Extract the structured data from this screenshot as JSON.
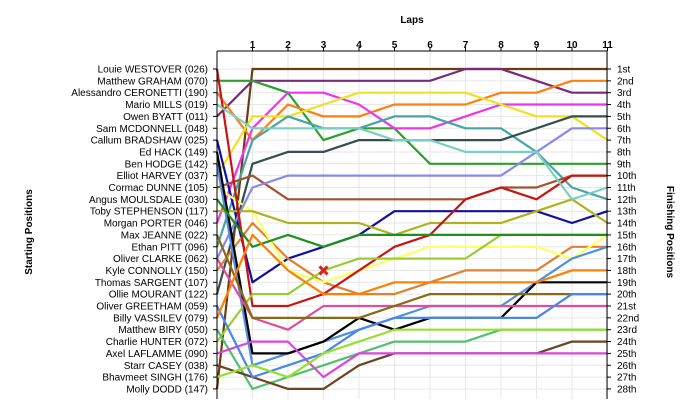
{
  "chart_data": {
    "type": "line",
    "title": "",
    "xlabel": "Laps",
    "ylabel_left": "Starting Positions",
    "ylabel_right": "Finishing Positions",
    "x_ticks": [
      "1",
      "2",
      "3",
      "4",
      "5",
      "6",
      "7",
      "8",
      "9",
      "10",
      "11"
    ],
    "drivers": [
      "Louie WESTOVER (026)",
      "Matthew GRAHAM (070)",
      "Alessandro CERONETTI (190)",
      "Mario MILLS (019)",
      "Owen BYATT (011)",
      "Sam MCDONNELL (048)",
      "Callum BRADSHAW (025)",
      "Ed HACK (149)",
      "Ben HODGE (142)",
      "Elliot HARVEY (037)",
      "Cormac DUNNE (105)",
      "Angus  MOULSDALE (030)",
      "Toby STEPHENSON (117)",
      "Morgan PORTER (046)",
      "Max JEANNE (022)",
      "Ethan PITT (096)",
      "Oliver CLARKE (062)",
      "Kyle CONNOLLY (150)",
      "Thomas SARGENT (107)",
      "Ollie MOURANT (122)",
      "Oliver GREETHAM (059)",
      "Billy VASSILEV (079)",
      "Matthew BIRY (050)",
      "Charlie HUNTER (072)",
      "Axel LAFLAMME (090)",
      "Starr CASEY (038)",
      "Bhavmeet SINGH (176)",
      "Molly DODD (147)"
    ],
    "finish_labels": [
      "1st",
      "2nd",
      "3rd",
      "4th",
      "5th",
      "6th",
      "7th",
      "8th",
      "9th",
      "10th",
      "11th",
      "12th",
      "13th",
      "14th",
      "15th",
      "16th",
      "17th",
      "18th",
      "19th",
      "20th",
      "21st",
      "22nd",
      "23rd",
      "24th",
      "25th",
      "26th",
      "27th",
      "28th"
    ],
    "marker": {
      "lap": 3,
      "position": 18,
      "color": "#e02020"
    },
    "series": [
      {
        "color": "#6a3d0e",
        "positions": [
          28,
          1,
          1,
          1,
          1,
          1,
          1,
          1,
          1,
          1,
          1,
          1
        ]
      },
      {
        "color": "#7a2a7a",
        "positions": [
          5,
          2,
          2,
          2,
          2,
          2,
          2,
          1,
          1,
          2,
          3,
          3
        ]
      },
      {
        "color": "#2ca02c",
        "positions": [
          2,
          2,
          3,
          7,
          6,
          6,
          9,
          9,
          9,
          9,
          9,
          9
        ]
      },
      {
        "color": "#ff7f0e",
        "positions": [
          3,
          7,
          4,
          5,
          5,
          4,
          4,
          4,
          3,
          3,
          2,
          2
        ]
      },
      {
        "color": "#ee33ee",
        "positions": [
          14,
          6,
          3,
          3,
          4,
          6,
          6,
          5,
          4,
          4,
          4,
          4
        ]
      },
      {
        "color": "#f0e020",
        "positions": [
          10,
          5,
          5,
          4,
          3,
          3,
          3,
          3,
          4,
          5,
          5,
          7
        ]
      },
      {
        "color": "#4aa3a3",
        "positions": [
          16,
          7,
          5,
          6,
          6,
          5,
          5,
          6,
          6,
          8,
          11,
          12
        ]
      },
      {
        "color": "#334f4f",
        "positions": [
          20,
          9,
          8,
          8,
          7,
          7,
          7,
          7,
          7,
          6,
          5,
          5
        ]
      },
      {
        "color": "#1010a0",
        "positions": [
          7,
          19,
          17,
          16,
          15,
          13,
          13,
          13,
          13,
          13,
          14,
          13
        ]
      },
      {
        "color": "#e08030",
        "positions": [
          18,
          14,
          17,
          19,
          20,
          20,
          19,
          18,
          18,
          18,
          16,
          16
        ]
      },
      {
        "color": "#ffff66",
        "positions": [
          11,
          13,
          18,
          19,
          18,
          17,
          16,
          16,
          16,
          16,
          17,
          15
        ]
      },
      {
        "color": "#a0522d",
        "positions": [
          11,
          10,
          12,
          12,
          12,
          12,
          12,
          12,
          11,
          11,
          10,
          10
        ]
      },
      {
        "color": "#8888ee",
        "positions": [
          17,
          11,
          10,
          10,
          10,
          10,
          10,
          10,
          10,
          8,
          6,
          6
        ]
      },
      {
        "color": "#b0b020",
        "positions": [
          13,
          13,
          14,
          14,
          14,
          15,
          14,
          14,
          14,
          13,
          12,
          14
        ]
      },
      {
        "color": "#c71515",
        "positions": [
          1,
          21,
          21,
          20,
          18,
          16,
          15,
          12,
          11,
          12,
          10,
          10
        ]
      },
      {
        "color": "#5090e0",
        "positions": [
          9,
          26,
          25,
          24,
          23,
          22,
          21,
          21,
          21,
          19,
          17,
          16
        ]
      },
      {
        "color": "#9acd32",
        "positions": [
          24,
          20,
          20,
          18,
          17,
          17,
          17,
          17,
          15,
          15,
          15,
          15
        ]
      },
      {
        "color": "#50c070",
        "positions": [
          23,
          28,
          27,
          26,
          25,
          24,
          24,
          24,
          23,
          23,
          23,
          23
        ]
      },
      {
        "color": "#000000",
        "positions": [
          8,
          25,
          25,
          24,
          22,
          23,
          22,
          22,
          22,
          19,
          19,
          19
        ]
      },
      {
        "color": "#de4da0",
        "positions": [
          17,
          22,
          23,
          21,
          21,
          21,
          21,
          21,
          21,
          21,
          21,
          21
        ]
      },
      {
        "color": "#1f8f1f",
        "positions": [
          12,
          16,
          15,
          16,
          15,
          15,
          15,
          15,
          15,
          15,
          15,
          15
        ]
      },
      {
        "color": "#8b6914",
        "positions": [
          15,
          22,
          22,
          22,
          22,
          21,
          20,
          20,
          20,
          20,
          20,
          20
        ]
      },
      {
        "color": "#7ad0c0",
        "positions": [
          4,
          6,
          6,
          6,
          6,
          7,
          7,
          8,
          8,
          8,
          12,
          11
        ]
      },
      {
        "color": "#6b4423",
        "positions": [
          26,
          27,
          28,
          28,
          26,
          25,
          25,
          25,
          25,
          25,
          24,
          24
        ]
      },
      {
        "color": "#dd44dd",
        "positions": [
          25,
          24,
          24,
          27,
          25,
          25,
          25,
          25,
          25,
          25,
          25,
          25
        ]
      },
      {
        "color": "#4a86e8",
        "positions": [
          21,
          27,
          26,
          25,
          23,
          22,
          22,
          22,
          22,
          22,
          20,
          20
        ]
      },
      {
        "color": "#99dd33",
        "positions": [
          27,
          26,
          27,
          25,
          24,
          23,
          23,
          23,
          23,
          23,
          23,
          23
        ]
      },
      {
        "color": "#ff8000",
        "positions": [
          22,
          15,
          18,
          20,
          20,
          19,
          19,
          19,
          19,
          19,
          18,
          18
        ]
      }
    ]
  }
}
